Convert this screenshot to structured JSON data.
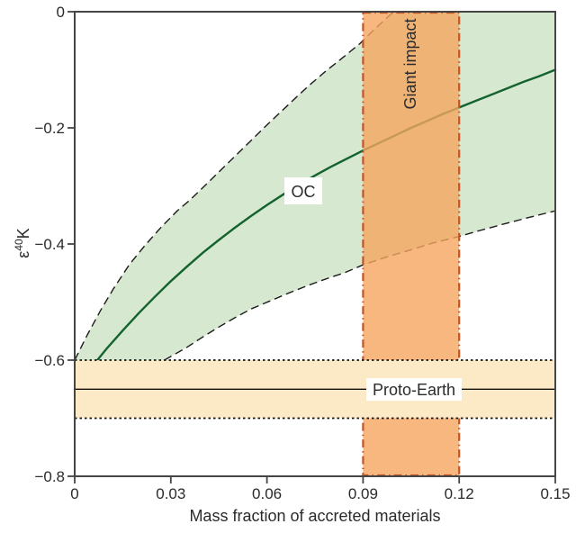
{
  "chart_data": {
    "type": "line",
    "title": "",
    "xlabel": "Mass fraction of accreted materials",
    "ylabel": "ε⁴⁰K",
    "ylabel_parts": {
      "symbol": "ε",
      "superscript": "40",
      "suffix": "K"
    },
    "xlim": [
      0,
      0.15
    ],
    "ylim": [
      -0.8,
      0
    ],
    "grid": false,
    "legend_position": "none",
    "xticks": [
      {
        "v": 0,
        "label": "0"
      },
      {
        "v": 0.03,
        "label": "0.03"
      },
      {
        "v": 0.06,
        "label": "0.06"
      },
      {
        "v": 0.09,
        "label": "0.09"
      },
      {
        "v": 0.12,
        "label": "0.12"
      },
      {
        "v": 0.15,
        "label": "0.15"
      }
    ],
    "yticks": [
      {
        "v": 0,
        "label": "0"
      },
      {
        "v": -0.2,
        "label": "−0.2"
      },
      {
        "v": -0.4,
        "label": "−0.4"
      },
      {
        "v": -0.6,
        "label": "−0.6"
      },
      {
        "v": -0.8,
        "label": "−0.8"
      }
    ],
    "series": [
      {
        "name": "OC",
        "role": "center",
        "line": "solid",
        "points": [
          [
            0,
            -0.65
          ],
          [
            0.005,
            -0.614
          ],
          [
            0.01,
            -0.58
          ],
          [
            0.015,
            -0.549
          ],
          [
            0.02,
            -0.519
          ],
          [
            0.025,
            -0.491
          ],
          [
            0.03,
            -0.464
          ],
          [
            0.035,
            -0.439
          ],
          [
            0.04,
            -0.415
          ],
          [
            0.045,
            -0.393
          ],
          [
            0.05,
            -0.372
          ],
          [
            0.055,
            -0.352
          ],
          [
            0.06,
            -0.333
          ],
          [
            0.065,
            -0.315
          ],
          [
            0.07,
            -0.298
          ],
          [
            0.075,
            -0.282
          ],
          [
            0.08,
            -0.267
          ],
          [
            0.085,
            -0.253
          ],
          [
            0.09,
            -0.239
          ],
          [
            0.095,
            -0.226
          ],
          [
            0.1,
            -0.213
          ],
          [
            0.105,
            -0.2
          ],
          [
            0.11,
            -0.188
          ],
          [
            0.115,
            -0.176
          ],
          [
            0.12,
            -0.165
          ],
          [
            0.125,
            -0.154
          ],
          [
            0.13,
            -0.143
          ],
          [
            0.135,
            -0.132
          ],
          [
            0.14,
            -0.121
          ],
          [
            0.145,
            -0.111
          ],
          [
            0.15,
            -0.1
          ]
        ]
      },
      {
        "name": "OC upper uncertainty bound",
        "role": "upper",
        "line": "dashed",
        "points": [
          [
            0,
            -0.6
          ],
          [
            0.004,
            -0.556
          ],
          [
            0.008,
            -0.515
          ],
          [
            0.012,
            -0.478
          ],
          [
            0.017,
            -0.436
          ],
          [
            0.022,
            -0.402
          ],
          [
            0.027,
            -0.371
          ],
          [
            0.032,
            -0.343
          ],
          [
            0.036,
            -0.324
          ],
          [
            0.04,
            -0.303
          ],
          [
            0.045,
            -0.276
          ],
          [
            0.05,
            -0.249
          ],
          [
            0.055,
            -0.222
          ],
          [
            0.06,
            -0.195
          ],
          [
            0.065,
            -0.169
          ],
          [
            0.07,
            -0.143
          ],
          [
            0.074,
            -0.123
          ],
          [
            0.078,
            -0.104
          ],
          [
            0.083,
            -0.082
          ],
          [
            0.089,
            -0.055
          ],
          [
            0.094,
            -0.028
          ],
          [
            0.0995,
            0
          ]
        ]
      },
      {
        "name": "OC lower uncertainty bound",
        "role": "lower",
        "line": "dashed",
        "points": [
          [
            0.028,
            -0.6
          ],
          [
            0.035,
            -0.578
          ],
          [
            0.04,
            -0.56
          ],
          [
            0.045,
            -0.543
          ],
          [
            0.05,
            -0.527
          ],
          [
            0.055,
            -0.512
          ],
          [
            0.061,
            -0.498
          ],
          [
            0.067,
            -0.484
          ],
          [
            0.073,
            -0.471
          ],
          [
            0.08,
            -0.457
          ],
          [
            0.084,
            -0.45
          ],
          [
            0.09,
            -0.436
          ],
          [
            0.097,
            -0.423
          ],
          [
            0.105,
            -0.41
          ],
          [
            0.112,
            -0.398
          ],
          [
            0.12,
            -0.387
          ],
          [
            0.127,
            -0.376
          ],
          [
            0.135,
            -0.364
          ],
          [
            0.142,
            -0.354
          ],
          [
            0.15,
            -0.343
          ]
        ]
      }
    ],
    "bands": {
      "giant_impact": {
        "label": "Giant impact",
        "axis": "x",
        "range": [
          0.09,
          0.12
        ]
      },
      "proto_earth": {
        "label": "Proto-Earth",
        "axis": "y",
        "range": [
          -0.7,
          -0.6
        ],
        "center_line": -0.65
      }
    }
  },
  "annotations": {
    "oc": "OC",
    "giant_impact": "Giant impact",
    "proto_earth": "Proto-Earth"
  },
  "colors": {
    "background": "#ffffff",
    "band_fill": "#d6e8cf",
    "oc_line": "#14632f",
    "bound_line": "#1c1c1c",
    "giant_fill": "#f5a55f",
    "giant_fill_opacity": 0.8,
    "giant_border": "#c2552a",
    "proto_fill": "#fce9c6",
    "proto_line": "#111111",
    "frame": "#454545",
    "text": "#2b2b2b"
  }
}
